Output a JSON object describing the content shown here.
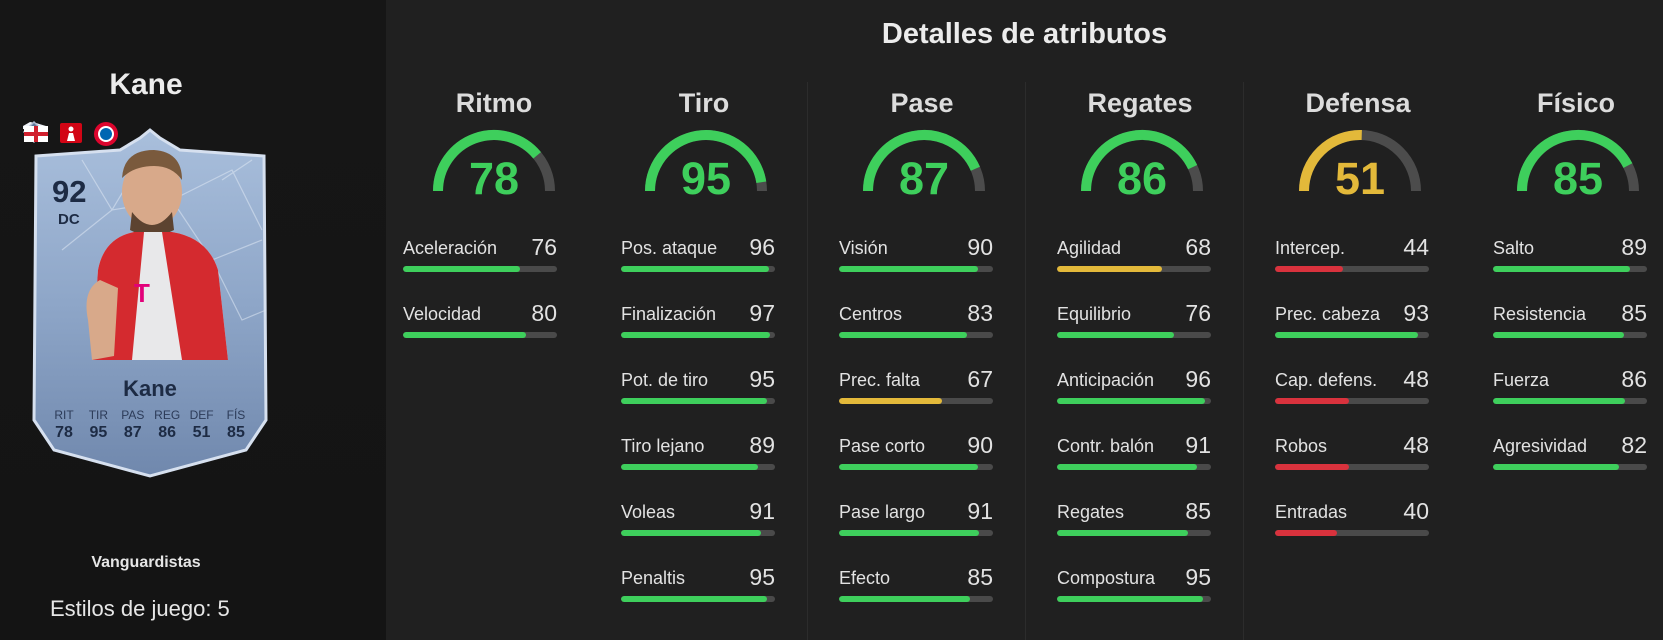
{
  "player": {
    "name": "Kane",
    "version": "Vanguardistas",
    "playstyles_label": "Estilos de juego: 5"
  },
  "card": {
    "rating": "92",
    "position": "DC",
    "name": "Kane",
    "stats": [
      {
        "label": "RIT",
        "value": "78"
      },
      {
        "label": "TIR",
        "value": "95"
      },
      {
        "label": "PAS",
        "value": "87"
      },
      {
        "label": "REG",
        "value": "86"
      },
      {
        "label": "DEF",
        "value": "51"
      },
      {
        "label": "FÍS",
        "value": "85"
      }
    ],
    "colors": {
      "card_base": "#8ea6c8",
      "card_border": "#c9d6ea",
      "text": "#1d2b44"
    }
  },
  "details": {
    "title": "Detalles de atributos",
    "colors": {
      "green": "#3ecf5c",
      "yellow": "#e3b93a",
      "red": "#d9323d",
      "track": "#4a4a4a"
    },
    "categories": [
      {
        "title": "Ritmo",
        "value": "78",
        "level": 78,
        "attributes": [
          {
            "name": "Aceleración",
            "value": "76"
          },
          {
            "name": "Velocidad",
            "value": "80"
          }
        ]
      },
      {
        "title": "Tiro",
        "value": "95",
        "level": 95,
        "attributes": [
          {
            "name": "Pos. ataque",
            "value": "96"
          },
          {
            "name": "Finalización",
            "value": "97"
          },
          {
            "name": "Pot. de tiro",
            "value": "95"
          },
          {
            "name": "Tiro lejano",
            "value": "89"
          },
          {
            "name": "Voleas",
            "value": "91"
          },
          {
            "name": "Penaltis",
            "value": "95"
          }
        ]
      },
      {
        "title": "Pase",
        "value": "87",
        "level": 87,
        "attributes": [
          {
            "name": "Visión",
            "value": "90"
          },
          {
            "name": "Centros",
            "value": "83"
          },
          {
            "name": "Prec. falta",
            "value": "67"
          },
          {
            "name": "Pase corto",
            "value": "90"
          },
          {
            "name": "Pase largo",
            "value": "91"
          },
          {
            "name": "Efecto",
            "value": "85"
          }
        ]
      },
      {
        "title": "Regates",
        "value": "86",
        "level": 86,
        "attributes": [
          {
            "name": "Agilidad",
            "value": "68"
          },
          {
            "name": "Equilibrio",
            "value": "76"
          },
          {
            "name": "Anticipación",
            "value": "96"
          },
          {
            "name": "Contr. balón",
            "value": "91"
          },
          {
            "name": "Regates",
            "value": "85"
          },
          {
            "name": "Compostura",
            "value": "95"
          }
        ]
      },
      {
        "title": "Defensa",
        "value": "51",
        "level": 51,
        "attributes": [
          {
            "name": "Intercep.",
            "value": "44"
          },
          {
            "name": "Prec. cabeza",
            "value": "93"
          },
          {
            "name": "Cap. defens.",
            "value": "48"
          },
          {
            "name": "Robos",
            "value": "48"
          },
          {
            "name": "Entradas",
            "value": "40"
          }
        ]
      },
      {
        "title": "Físico",
        "value": "85",
        "level": 85,
        "attributes": [
          {
            "name": "Salto",
            "value": "89"
          },
          {
            "name": "Resistencia",
            "value": "85"
          },
          {
            "name": "Fuerza",
            "value": "86"
          },
          {
            "name": "Agresividad",
            "value": "82"
          }
        ]
      }
    ]
  }
}
